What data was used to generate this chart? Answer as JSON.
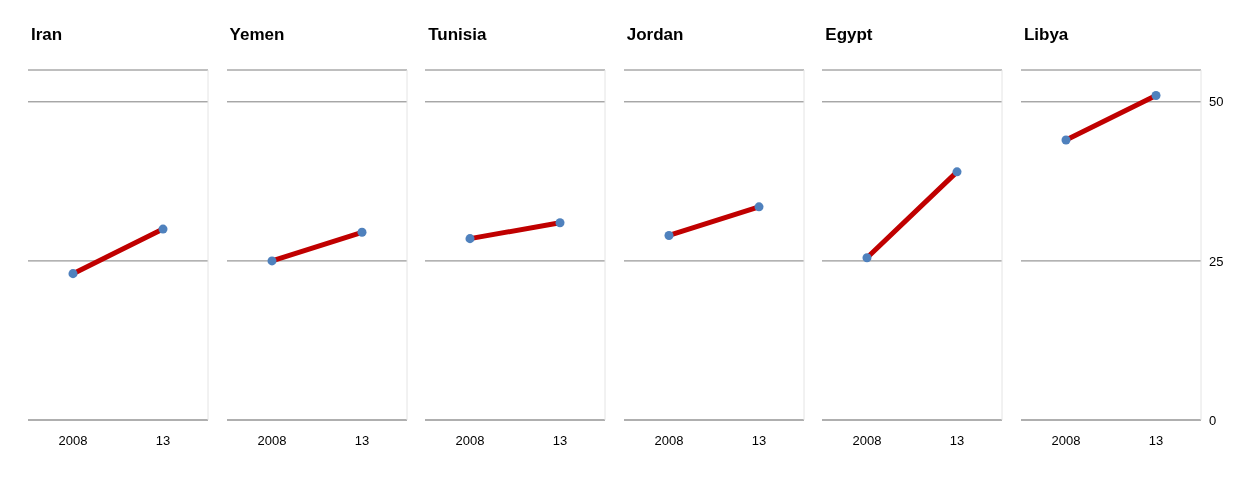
{
  "chart_data": [
    {
      "type": "line",
      "title": "Iran",
      "categories": [
        "2008",
        "13"
      ],
      "series": [
        {
          "type": "line",
          "color": "#c00000",
          "values": [
            23,
            30
          ]
        },
        {
          "type": "scatter",
          "color": "#4f81bd",
          "values": [
            23,
            30
          ],
          "marker": "circle"
        }
      ],
      "ylim": [
        0,
        55
      ],
      "yticks": [
        0,
        25,
        50
      ],
      "grid": "y",
      "tick_labels": "x"
    },
    {
      "type": "line",
      "title": "Yemen",
      "categories": [
        "2008",
        "13"
      ],
      "series": [
        {
          "type": "line",
          "color": "#c00000",
          "values": [
            25,
            29.5
          ]
        },
        {
          "type": "scatter",
          "color": "#4f81bd",
          "values": [
            25,
            29.5
          ],
          "marker": "circle"
        }
      ],
      "ylim": [
        0,
        55
      ],
      "yticks": [
        0,
        25,
        50
      ],
      "grid": "y",
      "tick_labels": "x"
    },
    {
      "type": "line",
      "title": "Tunisia",
      "categories": [
        "2008",
        "13"
      ],
      "series": [
        {
          "type": "line",
          "color": "#c00000",
          "values": [
            28.5,
            31
          ]
        },
        {
          "type": "scatter",
          "color": "#4f81bd",
          "values": [
            28.5,
            31
          ],
          "marker": "circle"
        }
      ],
      "ylim": [
        0,
        55
      ],
      "yticks": [
        0,
        25,
        50
      ],
      "grid": "y",
      "tick_labels": "x"
    },
    {
      "type": "line",
      "title": "Jordan",
      "categories": [
        "2008",
        "13"
      ],
      "series": [
        {
          "type": "line",
          "color": "#c00000",
          "values": [
            29,
            33.5
          ]
        },
        {
          "type": "scatter",
          "color": "#4f81bd",
          "values": [
            29,
            33.5
          ],
          "marker": "circle"
        }
      ],
      "ylim": [
        0,
        55
      ],
      "yticks": [
        0,
        25,
        50
      ],
      "grid": "y",
      "tick_labels": "x"
    },
    {
      "type": "line",
      "title": "Egypt",
      "categories": [
        "2008",
        "13"
      ],
      "series": [
        {
          "type": "line",
          "color": "#c00000",
          "values": [
            25.5,
            39
          ]
        },
        {
          "type": "scatter",
          "color": "#4f81bd",
          "values": [
            25.5,
            39
          ],
          "marker": "circle"
        }
      ],
      "ylim": [
        0,
        55
      ],
      "yticks": [
        0,
        25,
        50
      ],
      "grid": "y",
      "tick_labels": "x"
    },
    {
      "type": "line",
      "title": "Libya",
      "categories": [
        "2008",
        "13"
      ],
      "series": [
        {
          "type": "line",
          "color": "#c00000",
          "values": [
            44,
            51
          ]
        },
        {
          "type": "scatter",
          "color": "#4f81bd",
          "values": [
            44,
            51
          ],
          "marker": "circle"
        }
      ],
      "ylim": [
        0,
        55
      ],
      "yticks": [
        0,
        25,
        50
      ],
      "grid": "y"
    }
  ]
}
